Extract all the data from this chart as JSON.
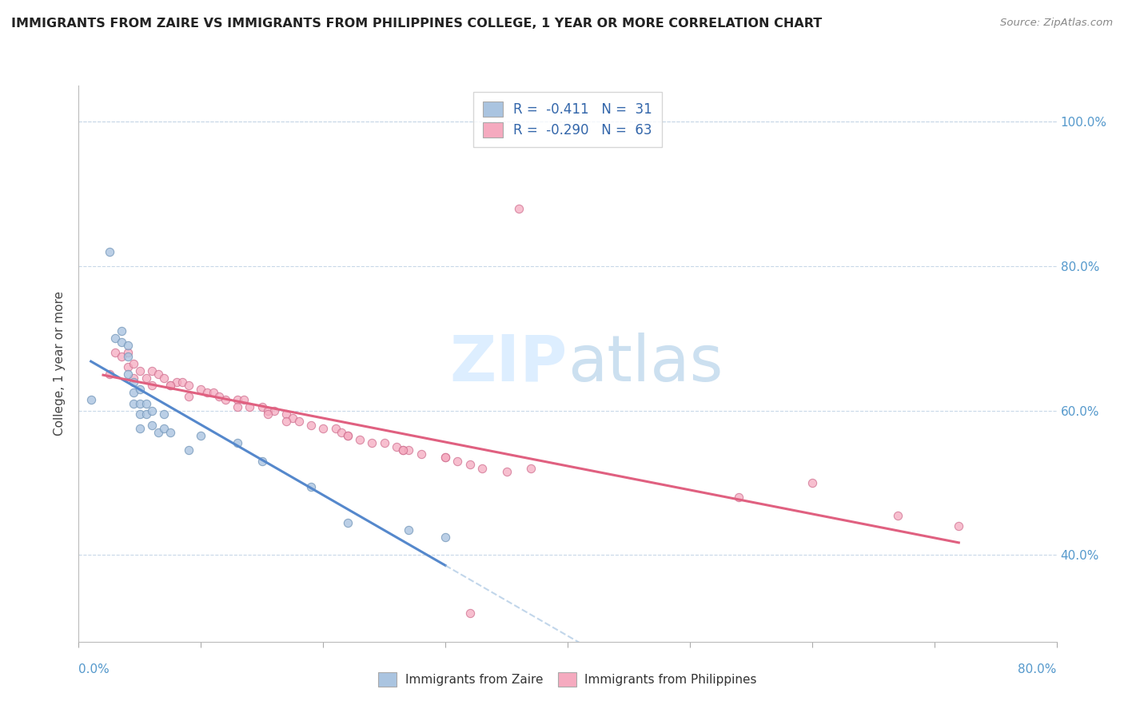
{
  "title": "IMMIGRANTS FROM ZAIRE VS IMMIGRANTS FROM PHILIPPINES COLLEGE, 1 YEAR OR MORE CORRELATION CHART",
  "source": "Source: ZipAtlas.com",
  "ylabel": "College, 1 year or more",
  "xlim": [
    0.0,
    0.8
  ],
  "ylim": [
    0.28,
    1.05
  ],
  "right_yticks": [
    0.4,
    0.6,
    0.8,
    1.0
  ],
  "right_yticklabels": [
    "40.0%",
    "60.0%",
    "80.0%",
    "100.0%"
  ],
  "legend_r1": "R =  -0.411",
  "legend_n1": "N =  31",
  "legend_r2": "R =  -0.290",
  "legend_n2": "N =  63",
  "color_zaire": "#aac4e0",
  "color_philippines": "#f5aabf",
  "color_zaire_line": "#5588cc",
  "color_philippines_line": "#e06080",
  "background_color": "#ffffff",
  "zaire_x": [
    0.01,
    0.025,
    0.03,
    0.035,
    0.035,
    0.04,
    0.04,
    0.04,
    0.045,
    0.045,
    0.045,
    0.05,
    0.05,
    0.05,
    0.05,
    0.055,
    0.055,
    0.06,
    0.06,
    0.065,
    0.07,
    0.07,
    0.075,
    0.09,
    0.1,
    0.13,
    0.15,
    0.19,
    0.22,
    0.27,
    0.3
  ],
  "zaire_y": [
    0.615,
    0.82,
    0.7,
    0.71,
    0.695,
    0.69,
    0.675,
    0.65,
    0.64,
    0.625,
    0.61,
    0.63,
    0.61,
    0.595,
    0.575,
    0.61,
    0.595,
    0.6,
    0.58,
    0.57,
    0.595,
    0.575,
    0.57,
    0.545,
    0.565,
    0.555,
    0.53,
    0.495,
    0.445,
    0.435,
    0.425
  ],
  "philippines_x": [
    0.025,
    0.03,
    0.035,
    0.04,
    0.04,
    0.045,
    0.045,
    0.05,
    0.055,
    0.06,
    0.06,
    0.065,
    0.07,
    0.075,
    0.08,
    0.085,
    0.09,
    0.1,
    0.105,
    0.11,
    0.115,
    0.12,
    0.13,
    0.135,
    0.14,
    0.15,
    0.155,
    0.16,
    0.17,
    0.175,
    0.18,
    0.19,
    0.2,
    0.21,
    0.215,
    0.22,
    0.23,
    0.24,
    0.25,
    0.26,
    0.265,
    0.27,
    0.28,
    0.3,
    0.31,
    0.32,
    0.33,
    0.35,
    0.075,
    0.09,
    0.13,
    0.155,
    0.17,
    0.22,
    0.265,
    0.3,
    0.37,
    0.54,
    0.6,
    0.67,
    0.72,
    0.36,
    0.32
  ],
  "philippines_y": [
    0.65,
    0.68,
    0.675,
    0.68,
    0.66,
    0.665,
    0.645,
    0.655,
    0.645,
    0.655,
    0.635,
    0.65,
    0.645,
    0.635,
    0.64,
    0.64,
    0.635,
    0.63,
    0.625,
    0.625,
    0.62,
    0.615,
    0.615,
    0.615,
    0.605,
    0.605,
    0.6,
    0.6,
    0.595,
    0.59,
    0.585,
    0.58,
    0.575,
    0.575,
    0.57,
    0.565,
    0.56,
    0.555,
    0.555,
    0.55,
    0.545,
    0.545,
    0.54,
    0.535,
    0.53,
    0.525,
    0.52,
    0.515,
    0.635,
    0.62,
    0.605,
    0.595,
    0.585,
    0.565,
    0.545,
    0.535,
    0.52,
    0.48,
    0.5,
    0.455,
    0.44,
    0.88,
    0.32
  ]
}
